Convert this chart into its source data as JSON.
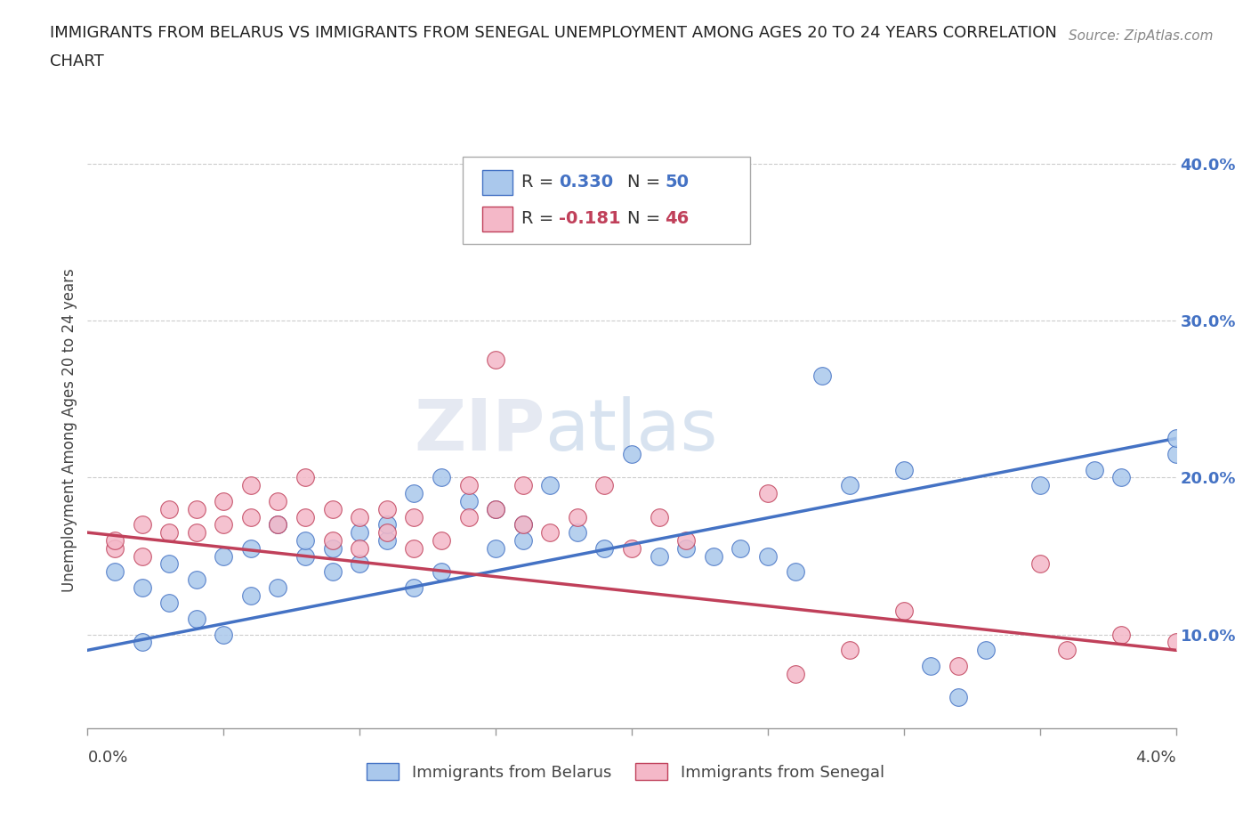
{
  "title_line1": "IMMIGRANTS FROM BELARUS VS IMMIGRANTS FROM SENEGAL UNEMPLOYMENT AMONG AGES 20 TO 24 YEARS CORRELATION",
  "title_line2": "CHART",
  "source": "Source: ZipAtlas.com",
  "ylabel": "Unemployment Among Ages 20 to 24 years",
  "watermark": "ZIPAtlas",
  "series": [
    {
      "name": "Immigrants from Belarus",
      "color": "#aac8ec",
      "edge_color": "#4472c4",
      "R": 0.33,
      "N": 50,
      "x": [
        0.001,
        0.002,
        0.002,
        0.003,
        0.003,
        0.004,
        0.004,
        0.005,
        0.005,
        0.006,
        0.006,
        0.007,
        0.007,
        0.008,
        0.008,
        0.009,
        0.009,
        0.01,
        0.01,
        0.011,
        0.011,
        0.012,
        0.012,
        0.013,
        0.013,
        0.014,
        0.015,
        0.015,
        0.016,
        0.016,
        0.017,
        0.018,
        0.019,
        0.02,
        0.021,
        0.022,
        0.023,
        0.024,
        0.025,
        0.026,
        0.027,
        0.028,
        0.03,
        0.031,
        0.032,
        0.033,
        0.035,
        0.037,
        0.038,
        0.04
      ],
      "y": [
        0.14,
        0.13,
        0.095,
        0.12,
        0.145,
        0.11,
        0.135,
        0.1,
        0.15,
        0.125,
        0.155,
        0.13,
        0.17,
        0.15,
        0.16,
        0.155,
        0.14,
        0.145,
        0.165,
        0.16,
        0.17,
        0.13,
        0.19,
        0.14,
        0.2,
        0.185,
        0.18,
        0.155,
        0.17,
        0.16,
        0.195,
        0.165,
        0.155,
        0.215,
        0.15,
        0.155,
        0.15,
        0.155,
        0.15,
        0.14,
        0.265,
        0.195,
        0.205,
        0.08,
        0.06,
        0.09,
        0.195,
        0.205,
        0.2,
        0.215
      ]
    },
    {
      "name": "Immigrants from Senegal",
      "color": "#f4b8c8",
      "edge_color": "#c0405a",
      "R": -0.181,
      "N": 46,
      "x": [
        0.001,
        0.001,
        0.002,
        0.002,
        0.003,
        0.003,
        0.004,
        0.004,
        0.005,
        0.005,
        0.006,
        0.006,
        0.007,
        0.007,
        0.008,
        0.008,
        0.009,
        0.009,
        0.01,
        0.01,
        0.011,
        0.011,
        0.012,
        0.012,
        0.013,
        0.014,
        0.014,
        0.015,
        0.015,
        0.016,
        0.016,
        0.017,
        0.018,
        0.019,
        0.02,
        0.021,
        0.022,
        0.025,
        0.026,
        0.028,
        0.03,
        0.032,
        0.035,
        0.036,
        0.038,
        0.04
      ],
      "y": [
        0.155,
        0.16,
        0.15,
        0.17,
        0.165,
        0.18,
        0.165,
        0.18,
        0.17,
        0.185,
        0.175,
        0.195,
        0.17,
        0.185,
        0.175,
        0.2,
        0.16,
        0.18,
        0.155,
        0.175,
        0.165,
        0.18,
        0.155,
        0.175,
        0.16,
        0.195,
        0.175,
        0.18,
        0.275,
        0.17,
        0.195,
        0.165,
        0.175,
        0.195,
        0.155,
        0.175,
        0.16,
        0.19,
        0.075,
        0.09,
        0.115,
        0.08,
        0.145,
        0.09,
        0.1,
        0.095
      ]
    }
  ],
  "xlim": [
    0.0,
    0.04
  ],
  "ylim": [
    0.04,
    0.42
  ],
  "yticks": [
    0.1,
    0.2,
    0.3,
    0.4
  ],
  "ytick_labels": [
    "10.0%",
    "20.0%",
    "30.0%",
    "40.0%"
  ],
  "legend_R_colors": [
    "#4472c4",
    "#c0405a"
  ],
  "background_color": "#ffffff",
  "grid_color": "#cccccc"
}
